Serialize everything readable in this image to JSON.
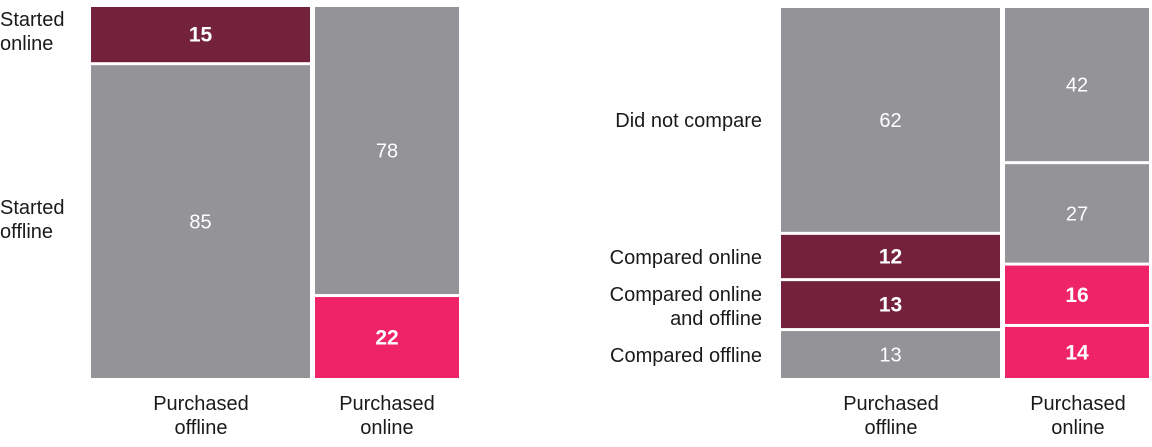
{
  "colors": {
    "gray": "#939398",
    "maroon": "#74223c",
    "pink": "#ef2468",
    "white": "#ffffff"
  },
  "chart_data": [
    {
      "type": "mosaic",
      "columns": [
        "Purchased offline",
        "Purchased online"
      ],
      "rows": [
        "Started online",
        "Started offline"
      ],
      "cells": [
        {
          "column": "Purchased offline",
          "row": "Started online",
          "value": 15,
          "color": "maroon"
        },
        {
          "column": "Purchased offline",
          "row": "Started offline",
          "value": 85,
          "color": "gray"
        },
        {
          "column": "Purchased online",
          "row": "Started offline",
          "value": 78,
          "color": "gray"
        },
        {
          "column": "Purchased online",
          "row": "Started online",
          "value": 22,
          "color": "pink"
        }
      ]
    },
    {
      "type": "mosaic",
      "columns": [
        "Purchased offline",
        "Purchased online"
      ],
      "rows": [
        "Did not compare",
        "Compared online",
        "Compared online and offline",
        "Compared offline"
      ],
      "cells": [
        {
          "column": "Purchased offline",
          "row": "Did not compare",
          "value": 62,
          "color": "gray"
        },
        {
          "column": "Purchased offline",
          "row": "Compared online",
          "value": 12,
          "color": "maroon"
        },
        {
          "column": "Purchased offline",
          "row": "Compared online and offline",
          "value": 13,
          "color": "maroon"
        },
        {
          "column": "Purchased offline",
          "row": "Compared offline",
          "value": 13,
          "color": "gray"
        },
        {
          "column": "Purchased online",
          "row": "Did not compare",
          "value": 42,
          "color": "gray"
        },
        {
          "column": "Purchased online",
          "row": "Compared offline",
          "value": 27,
          "color": "gray"
        },
        {
          "column": "Purchased online",
          "row": "Compared online",
          "value": 16,
          "color": "pink"
        },
        {
          "column": "Purchased online",
          "row": "Compared online and offline",
          "value": 14,
          "color": "pink"
        }
      ]
    }
  ],
  "labels": {
    "left": {
      "started_online": [
        "Started",
        "online"
      ],
      "started_offline": [
        "Started",
        "offline"
      ],
      "col_offline": [
        "Purchased",
        "offline"
      ],
      "col_online": [
        "Purchased",
        "online"
      ]
    },
    "right": {
      "did_not_compare": "Did not compare",
      "compared_online": "Compared online",
      "compared_online_and_offline": [
        "Compared online",
        "and offline"
      ],
      "compared_offline": "Compared offline",
      "col_offline": [
        "Purchased",
        "offline"
      ],
      "col_online": [
        "Purchased",
        "online"
      ]
    }
  }
}
